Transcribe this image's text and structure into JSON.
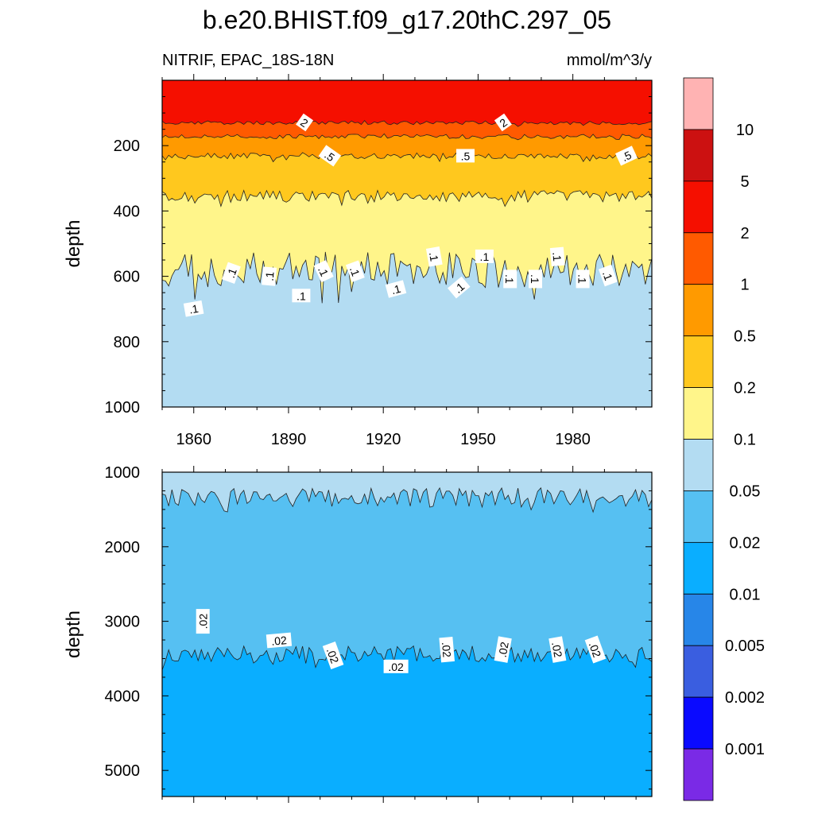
{
  "chart_data": {
    "type": "contour",
    "title": "b.e20.BHIST.f09_g17.20thC.297_05",
    "subtitle_left": "NITRIF, EPAC_18S-18N",
    "subtitle_right": "mmol/m^3/y",
    "xlabel": "",
    "x_ticks": [
      "1860",
      "1890",
      "1920",
      "1950",
      "1980"
    ],
    "x_tick_values": [
      1860,
      1890,
      1920,
      1950,
      1980
    ],
    "xlim": [
      1850,
      2005
    ],
    "colorbar": {
      "labels": [
        "10",
        "5",
        "2",
        "1",
        "0.5",
        "0.2",
        "0.1",
        "0.05",
        "0.02",
        "0.01",
        "0.005",
        "0.002",
        "0.001"
      ],
      "colors": [
        "#ffb3b3",
        "#cc1111",
        "#f50f00",
        "#ff5a00",
        "#ff9a00",
        "#ffc81e",
        "#fff58a",
        "#b3dcf2",
        "#56c0f2",
        "#0aaeff",
        "#2786e8",
        "#3a5ee0",
        "#0a0aff",
        "#7a2ae6"
      ]
    },
    "panels": [
      {
        "ylabel": "depth",
        "ylim": [
          1000,
          0
        ],
        "y_ticks": [
          "200",
          "400",
          "600",
          "800",
          "1000"
        ],
        "y_tick_values": [
          200,
          400,
          600,
          800,
          1000
        ],
        "fills": [
          {
            "color": "#f50f00"
          },
          {
            "color": "#ff5a00"
          },
          {
            "color": "#ff9a00"
          },
          {
            "color": "#ffc81e"
          },
          {
            "color": "#fff58a"
          },
          {
            "color": "#b3dcf2"
          }
        ],
        "contours": [
          {
            "level": "2",
            "depth": 130,
            "amp": 6
          },
          {
            "level": "1",
            "depth": 172,
            "amp": 7
          },
          {
            "level": "0.5",
            "depth": 232,
            "amp": 9
          },
          {
            "level": "0.2",
            "depth": 355,
            "amp": 18
          },
          {
            "level": "0.1",
            "depth": 580,
            "amp": 55
          }
        ],
        "contour_labels": [
          {
            "text": "2",
            "year": 1895,
            "depth": 130,
            "angle": 35
          },
          {
            "text": "2",
            "year": 1958,
            "depth": 130,
            "angle": -35
          },
          {
            "text": ".5",
            "year": 1903,
            "depth": 232,
            "angle": 35
          },
          {
            "text": ".5",
            "year": 1946,
            "depth": 232,
            "angle": 0
          },
          {
            "text": ".5",
            "year": 1997,
            "depth": 232,
            "angle": -25
          },
          {
            "text": ".1",
            "year": 1860,
            "depth": 700,
            "angle": -10
          },
          {
            "text": ".1",
            "year": 1872,
            "depth": 590,
            "angle": -70
          },
          {
            "text": ".1",
            "year": 1884,
            "depth": 600,
            "angle": -85
          },
          {
            "text": ".1",
            "year": 1894,
            "depth": 660,
            "angle": 0
          },
          {
            "text": ".1",
            "year": 1901,
            "depth": 585,
            "angle": 65
          },
          {
            "text": ".1",
            "year": 1911,
            "depth": 585,
            "angle": 70
          },
          {
            "text": ".1",
            "year": 1924,
            "depth": 640,
            "angle": -15
          },
          {
            "text": ".1",
            "year": 1936,
            "depth": 540,
            "angle": 80
          },
          {
            "text": ".1",
            "year": 1944,
            "depth": 635,
            "angle": -40
          },
          {
            "text": ".1",
            "year": 1952,
            "depth": 540,
            "angle": 0
          },
          {
            "text": ".1",
            "year": 1960,
            "depth": 608,
            "angle": 90
          },
          {
            "text": ".1",
            "year": 1968,
            "depth": 608,
            "angle": 90
          },
          {
            "text": ".1",
            "year": 1975,
            "depth": 540,
            "angle": 85
          },
          {
            "text": ".1",
            "year": 1983,
            "depth": 608,
            "angle": 90
          },
          {
            "text": ".1",
            "year": 1991,
            "depth": 598,
            "angle": 70
          }
        ]
      },
      {
        "ylabel": "depth",
        "ylim": [
          5350,
          1000
        ],
        "y_ticks": [
          "1000",
          "2000",
          "3000",
          "4000",
          "5000"
        ],
        "y_tick_values": [
          1000,
          2000,
          3000,
          4000,
          5000
        ],
        "fills": [
          {
            "color": "#b3dcf2"
          },
          {
            "color": "#56c0f2"
          },
          {
            "color": "#0aaeff"
          }
        ],
        "contours": [
          {
            "level": "0.05",
            "depth": 1340,
            "amp": 130
          },
          {
            "level": "0.02",
            "depth": 3440,
            "amp": 110
          }
        ],
        "contour_labels": [
          {
            "text": ".02",
            "year": 1863,
            "depth": 3000,
            "angle": -90
          },
          {
            "text": ".02",
            "year": 1887,
            "depth": 3260,
            "angle": -5
          },
          {
            "text": ".02",
            "year": 1904,
            "depth": 3460,
            "angle": 70
          },
          {
            "text": ".02",
            "year": 1924,
            "depth": 3610,
            "angle": 0
          },
          {
            "text": ".02",
            "year": 1940,
            "depth": 3380,
            "angle": 85
          },
          {
            "text": ".02",
            "year": 1958,
            "depth": 3380,
            "angle": -80
          },
          {
            "text": ".02",
            "year": 1975,
            "depth": 3380,
            "angle": 80
          },
          {
            "text": ".02",
            "year": 1987,
            "depth": 3380,
            "angle": 70
          }
        ]
      }
    ]
  }
}
